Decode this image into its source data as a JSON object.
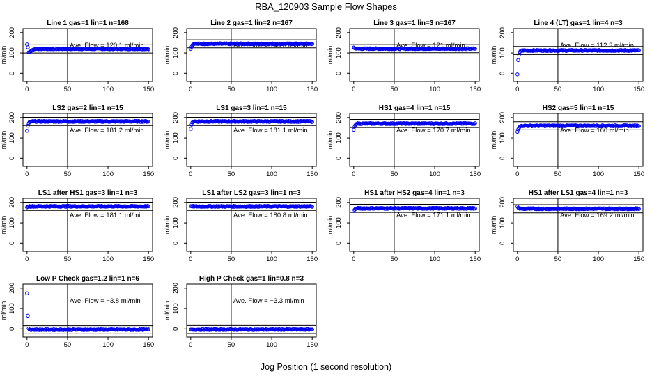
{
  "suptitle": "RBA_120903  Sample Flow Shapes",
  "xlabel": "Jog Position (1 second resolution)",
  "colors": {
    "points": "#0000ee",
    "axes": "#000000",
    "background": "#ffffff"
  },
  "chart_data": [
    {
      "type": "scatter",
      "title": "Line 1 gas=1 lin=1 n=168",
      "ylabel": "ml/min",
      "ylim": [
        -40,
        220
      ],
      "xlim": [
        -5,
        155
      ],
      "yticks": [
        0,
        100,
        200
      ],
      "xticks": [
        0,
        50,
        100,
        150
      ],
      "hlines": [
        100,
        140
      ],
      "vline": 50,
      "annotation": "Ave. Flow =  120.1  ml/min",
      "start": [
        142,
        128,
        103,
        104,
        107,
        110,
        113,
        115,
        117,
        118,
        119,
        120
      ],
      "steady": 120.1
    },
    {
      "type": "scatter",
      "title": "Line 2 gas=1 lin=2 n=167",
      "ylabel": "ml/min",
      "ylim": [
        -40,
        220
      ],
      "xlim": [
        -5,
        155
      ],
      "yticks": [
        0,
        100,
        200
      ],
      "xticks": [
        0,
        50,
        100,
        150
      ],
      "hlines": [
        125,
        165
      ],
      "vline": 50,
      "annotation": "Ave. Flow =  145.0  ml/min",
      "start": [
        120,
        130,
        138,
        142,
        144,
        145
      ],
      "steady": 145.0
    },
    {
      "type": "scatter",
      "title": "Line 3 gas=1 lin=3 n=167",
      "ylabel": "ml/min",
      "ylim": [
        -40,
        220
      ],
      "xlim": [
        -5,
        155
      ],
      "yticks": [
        0,
        100,
        200
      ],
      "xticks": [
        0,
        50,
        100,
        150
      ],
      "hlines": [
        101,
        141
      ],
      "vline": 50,
      "annotation": "Ave. Flow =  121  ml/min",
      "start": [
        127,
        124,
        122,
        121
      ],
      "steady": 121
    },
    {
      "type": "scatter",
      "title": "Line 4 (LT) gas=1 lin=4 n=3",
      "ylabel": "ml/min",
      "ylim": [
        -40,
        220
      ],
      "xlim": [
        -5,
        155
      ],
      "yticks": [
        0,
        100,
        200
      ],
      "xticks": [
        0,
        50,
        100,
        150
      ],
      "hlines": [
        92,
        132
      ],
      "vline": 50,
      "annotation": "Ave. Flow =  112.3  ml/min",
      "start": [
        -5,
        65,
        92,
        105,
        110,
        112
      ],
      "steady": 112.3
    },
    {
      "type": "scatter",
      "title": "LS2 gas=2 lin=1 n=15",
      "ylabel": "ml/min",
      "ylim": [
        -40,
        220
      ],
      "xlim": [
        -5,
        155
      ],
      "yticks": [
        0,
        100,
        200
      ],
      "xticks": [
        0,
        50,
        100,
        150
      ],
      "hlines": [
        161,
        201
      ],
      "vline": 50,
      "annotation": "Ave. Flow =  181.2  ml/min",
      "start": [
        135,
        160,
        172,
        178,
        180,
        181
      ],
      "steady": 181.2
    },
    {
      "type": "scatter",
      "title": "LS1 gas=3 lin=1 n=15",
      "ylabel": "ml/min",
      "ylim": [
        -40,
        220
      ],
      "xlim": [
        -5,
        155
      ],
      "yticks": [
        0,
        100,
        200
      ],
      "xticks": [
        0,
        50,
        100,
        150
      ],
      "hlines": [
        161,
        201
      ],
      "vline": 50,
      "annotation": "Ave. Flow =  181.1  ml/min",
      "start": [
        145,
        165,
        176,
        180,
        181
      ],
      "steady": 181.1
    },
    {
      "type": "scatter",
      "title": "HS1 gas=4 lin=1 n=15",
      "ylabel": "ml/min",
      "ylim": [
        -40,
        220
      ],
      "xlim": [
        -5,
        155
      ],
      "yticks": [
        0,
        100,
        200
      ],
      "xticks": [
        0,
        50,
        100,
        150
      ],
      "hlines": [
        151,
        191
      ],
      "vline": 50,
      "annotation": "Ave. Flow =  170.7  ml/min",
      "start": [
        140,
        155,
        163,
        168,
        170
      ],
      "steady": 170.7
    },
    {
      "type": "scatter",
      "title": "HS2 gas=5 lin=1 n=15",
      "ylabel": "ml/min",
      "ylim": [
        -40,
        220
      ],
      "xlim": [
        -5,
        155
      ],
      "yticks": [
        0,
        100,
        200
      ],
      "xticks": [
        0,
        50,
        100,
        150
      ],
      "hlines": [
        140,
        180
      ],
      "vline": 50,
      "annotation": "Ave. Flow =  160  ml/min",
      "start": [
        130,
        142,
        150,
        155,
        158,
        160
      ],
      "steady": 160
    },
    {
      "type": "scatter",
      "title": "LS1 after HS1 gas=3 lin=1 n=3",
      "ylabel": "ml/min",
      "ylim": [
        -40,
        220
      ],
      "xlim": [
        -5,
        155
      ],
      "yticks": [
        0,
        100,
        200
      ],
      "xticks": [
        0,
        50,
        100,
        150
      ],
      "hlines": [
        161,
        201
      ],
      "vline": 50,
      "annotation": "Ave. Flow =  181.1  ml/min",
      "start": [
        176,
        179,
        181
      ],
      "steady": 181.1
    },
    {
      "type": "scatter",
      "title": "LS1 after LS2 gas=3 lin=1 n=3",
      "ylabel": "ml/min",
      "ylim": [
        -40,
        220
      ],
      "xlim": [
        -5,
        155
      ],
      "yticks": [
        0,
        100,
        200
      ],
      "xticks": [
        0,
        50,
        100,
        150
      ],
      "hlines": [
        161,
        201
      ],
      "vline": 50,
      "annotation": "Ave. Flow =  180.8  ml/min",
      "start": [
        182,
        181,
        180
      ],
      "steady": 180.8
    },
    {
      "type": "scatter",
      "title": "HS1 after HS2 gas=4 lin=1 n=3",
      "ylabel": "ml/min",
      "ylim": [
        -40,
        220
      ],
      "xlim": [
        -5,
        155
      ],
      "yticks": [
        0,
        100,
        200
      ],
      "xticks": [
        0,
        50,
        100,
        150
      ],
      "hlines": [
        151,
        191
      ],
      "vline": 50,
      "annotation": "Ave. Flow =  171.1  ml/min",
      "start": [
        158,
        164,
        168,
        170,
        171
      ],
      "steady": 171.1
    },
    {
      "type": "scatter",
      "title": "HS1 after LS1 gas=4 lin=1 n=3",
      "ylabel": "ml/min",
      "ylim": [
        -40,
        220
      ],
      "xlim": [
        -5,
        155
      ],
      "yticks": [
        0,
        100,
        200
      ],
      "xticks": [
        0,
        50,
        100,
        150
      ],
      "hlines": [
        149,
        189
      ],
      "vline": 50,
      "annotation": "Ave. Flow =  169.2  ml/min",
      "start": [
        180,
        174,
        171,
        169
      ],
      "steady": 169.2
    },
    {
      "type": "scatter",
      "title": "Low P Check gas=1.2 lin=1 n=6",
      "ylabel": "ml/min",
      "ylim": [
        -40,
        220
      ],
      "xlim": [
        -5,
        155
      ],
      "yticks": [
        0,
        100,
        200
      ],
      "xticks": [
        0,
        50,
        100,
        150
      ],
      "hlines": [
        -24,
        16
      ],
      "vline": 50,
      "annotation": "Ave. Flow =  −3.8  ml/min",
      "start": [
        175,
        65,
        2,
        -3
      ],
      "steady": -3.8
    },
    {
      "type": "scatter",
      "title": "High P Check gas=1 lin=0.8 n=3",
      "ylabel": "ml/min",
      "ylim": [
        -40,
        220
      ],
      "xlim": [
        -5,
        155
      ],
      "yticks": [
        0,
        100,
        200
      ],
      "xticks": [
        0,
        50,
        100,
        150
      ],
      "hlines": [
        -23,
        17
      ],
      "vline": 50,
      "annotation": "Ave. Flow =  −3.3  ml/min",
      "start": [
        -3,
        -3
      ],
      "steady": -3.3
    }
  ]
}
